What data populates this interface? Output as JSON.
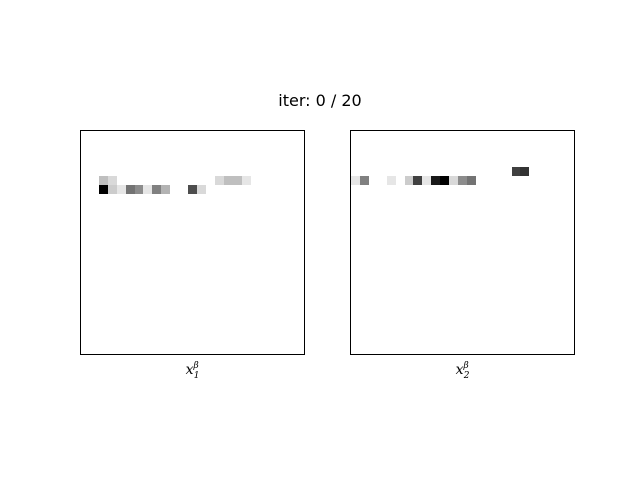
{
  "title": "iter: 0 / 20",
  "chart_data": [
    {
      "type": "heatmap",
      "xlabel": {
        "base": "x",
        "superscript": "β",
        "subscript": "1"
      },
      "grid_size": 25,
      "colormap": "gray_r",
      "ticks": "none",
      "cells": [
        {
          "row": 5,
          "col": 2,
          "value": 0.25
        },
        {
          "row": 5,
          "col": 3,
          "value": 0.15
        },
        {
          "row": 5,
          "col": 15,
          "value": 0.15
        },
        {
          "row": 5,
          "col": 16,
          "value": 0.25
        },
        {
          "row": 5,
          "col": 17,
          "value": 0.25
        },
        {
          "row": 5,
          "col": 18,
          "value": 0.1
        },
        {
          "row": 6,
          "col": 2,
          "value": 1.0
        },
        {
          "row": 6,
          "col": 3,
          "value": 0.2
        },
        {
          "row": 6,
          "col": 4,
          "value": 0.1
        },
        {
          "row": 6,
          "col": 5,
          "value": 0.55
        },
        {
          "row": 6,
          "col": 6,
          "value": 0.45
        },
        {
          "row": 6,
          "col": 7,
          "value": 0.1
        },
        {
          "row": 6,
          "col": 8,
          "value": 0.5
        },
        {
          "row": 6,
          "col": 9,
          "value": 0.3
        },
        {
          "row": 6,
          "col": 12,
          "value": 0.7
        },
        {
          "row": 6,
          "col": 13,
          "value": 0.15
        }
      ]
    },
    {
      "type": "heatmap",
      "xlabel": {
        "base": "x",
        "superscript": "β",
        "subscript": "2"
      },
      "grid_size": 25,
      "colormap": "gray_r",
      "ticks": "none",
      "cells": [
        {
          "row": 4,
          "col": 18,
          "value": 0.75
        },
        {
          "row": 4,
          "col": 19,
          "value": 0.8
        },
        {
          "row": 5,
          "col": 0,
          "value": 0.1
        },
        {
          "row": 5,
          "col": 1,
          "value": 0.5
        },
        {
          "row": 5,
          "col": 4,
          "value": 0.1
        },
        {
          "row": 5,
          "col": 6,
          "value": 0.2
        },
        {
          "row": 5,
          "col": 7,
          "value": 0.75
        },
        {
          "row": 5,
          "col": 8,
          "value": 0.1
        },
        {
          "row": 5,
          "col": 9,
          "value": 0.9
        },
        {
          "row": 5,
          "col": 10,
          "value": 1.0
        },
        {
          "row": 5,
          "col": 11,
          "value": 0.15
        },
        {
          "row": 5,
          "col": 12,
          "value": 0.45
        },
        {
          "row": 5,
          "col": 13,
          "value": 0.55
        }
      ]
    }
  ]
}
